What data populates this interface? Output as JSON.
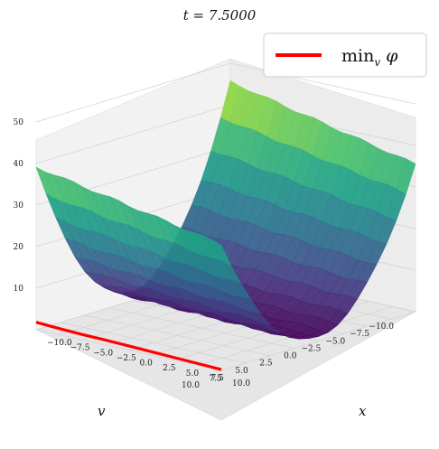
{
  "chart_data": {
    "type": "surface",
    "title": "t = 7.5000",
    "xlabel": "x",
    "ylabel": "v",
    "x_ticks": [
      "−10.0",
      "−7.5",
      "−5.0",
      "−2.5",
      "0.0",
      "2.5",
      "5.0",
      "7.5",
      "10.0"
    ],
    "v_ticks": [
      "−10.0",
      "−7.5",
      "−5.0",
      "−2.5",
      "0.0",
      "2.5",
      "5.0",
      "7.5",
      "10.0"
    ],
    "z_ticks": [
      "10",
      "20",
      "30",
      "40",
      "50"
    ],
    "xlim": [
      -10,
      10
    ],
    "vlim": [
      -10,
      10
    ],
    "zlim": [
      0,
      52
    ],
    "colormap": "viridis",
    "legend": {
      "label": "min_v φ",
      "color": "#ff0000",
      "position": "upper-right"
    },
    "surface_samples": {
      "x": [
        -10,
        -5,
        0,
        5,
        10
      ],
      "v": [
        -10,
        -5,
        0,
        5,
        10
      ],
      "phi_at_x_minus10": [
        50,
        40,
        22,
        35,
        46
      ],
      "phi_at_x_plus10": [
        47,
        38,
        14,
        30,
        45
      ]
    },
    "min_v_phi": {
      "x": [
        -10,
        -7.5,
        -5,
        -2.5,
        0,
        2.5,
        5,
        7.5,
        10
      ],
      "y": [
        1.8,
        1.5,
        1.3,
        1.2,
        1.0,
        0.8,
        0.6,
        0.4,
        0.2
      ]
    }
  }
}
